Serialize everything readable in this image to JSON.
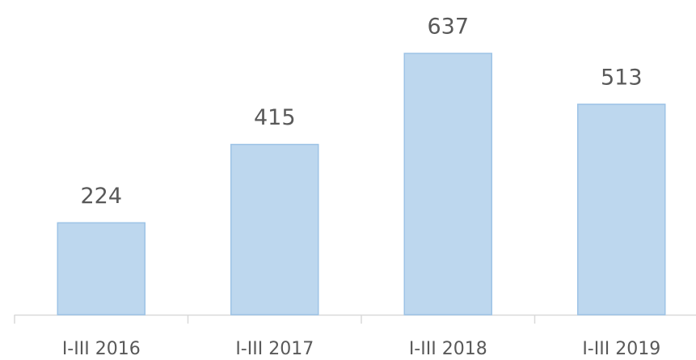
{
  "chart_data": {
    "type": "bar",
    "categories": [
      "I-III 2016",
      "I-III 2017",
      "I-III 2018",
      "I-III 2019"
    ],
    "values": [
      224,
      415,
      637,
      513
    ],
    "color": "#bdd7ee"
  }
}
